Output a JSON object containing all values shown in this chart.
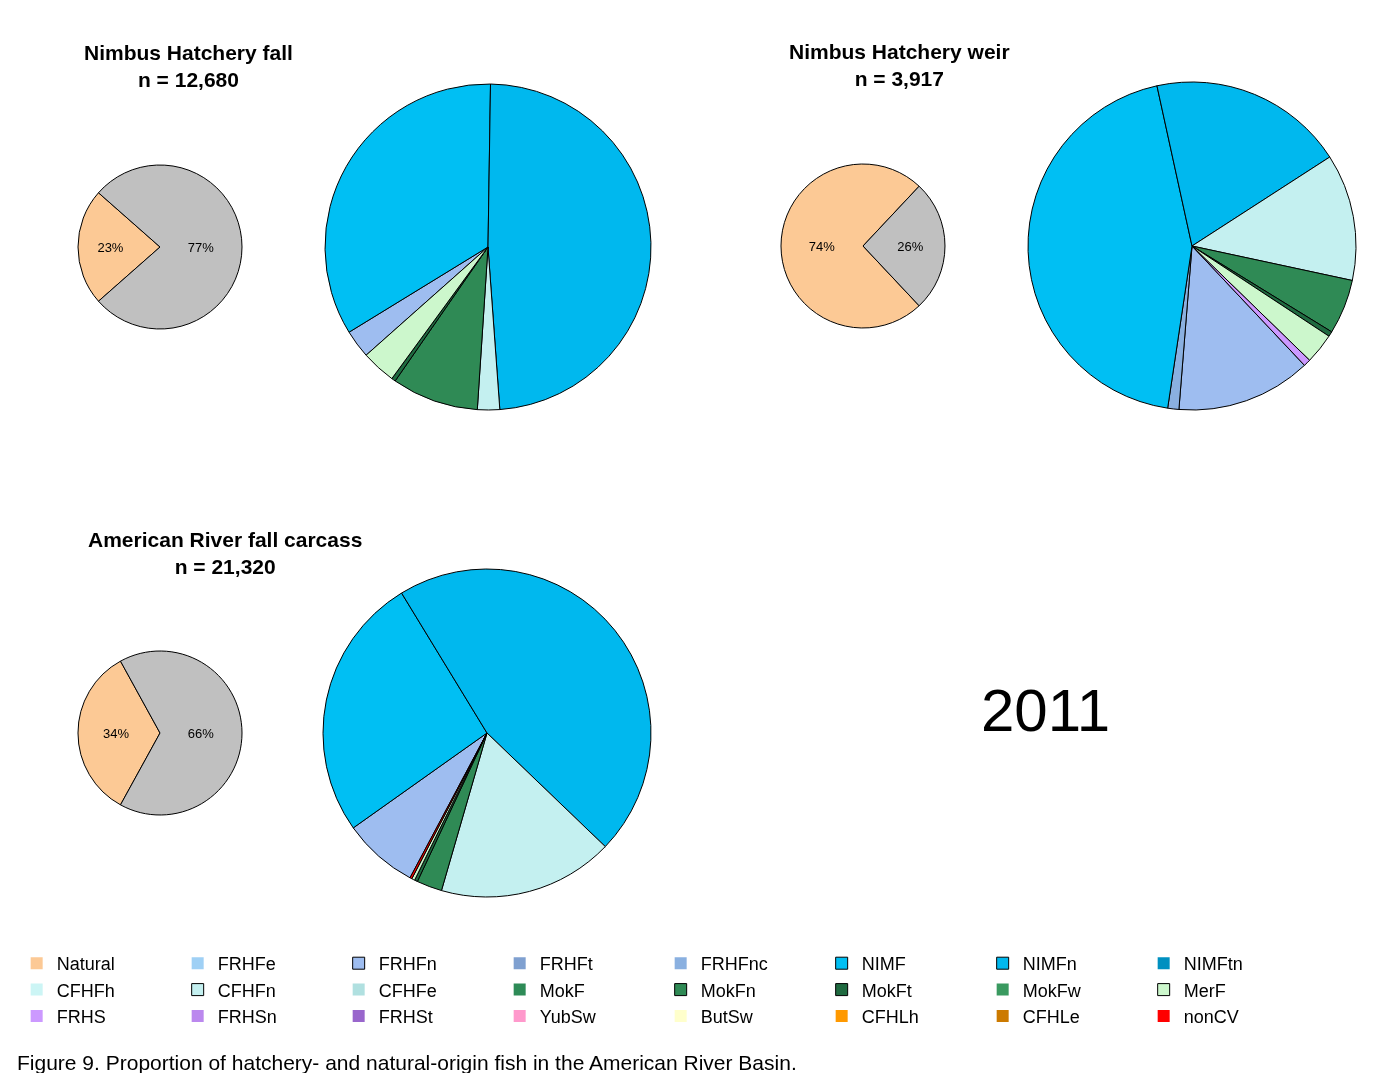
{
  "chart_data": [
    {
      "type": "pie",
      "title": "Nimbus Hatchery fall",
      "subtitle": "n = 12,680",
      "categories": [
        null,
        null
      ],
      "values": [
        23,
        77
      ],
      "colors": [
        "#fcc995",
        "#c0c0c0"
      ],
      "value_labels": [
        "23%",
        "77%"
      ]
    },
    {
      "type": "pie",
      "legend": "bottom",
      "categories": [
        "Natural",
        "FRHFe",
        "FRHFn",
        "FRHFt",
        "FRHFnc",
        "NIMF",
        "NIMFn",
        "NIMFtn",
        "CFHFh",
        "CFHFn",
        "CFHFe",
        "MokF",
        "MokFn",
        "MokFt",
        "MokFw",
        "MerF",
        "FRHS",
        "FRHSn",
        "FRHSt",
        "YubSw",
        "ButSw",
        "CFHLh",
        "CFHLe",
        "nonCV"
      ],
      "values": [
        0,
        0,
        2.8,
        0,
        0,
        34.0,
        48.6,
        0,
        0,
        2.2,
        0,
        0,
        8.6,
        0.4,
        0,
        3.4,
        0,
        0,
        0,
        0,
        0,
        0,
        0,
        0
      ],
      "colors": [
        "#fcc995",
        "#9fd0f5",
        "#9ebdf0",
        "#7fa0d0",
        "#8ab0e0",
        "#00bff3",
        "#00b8ee",
        "#0090c0",
        "#ccf5f5",
        "#c4f0f0",
        "#b0e0e0",
        "#2e8b57",
        "#2f8a55",
        "#1f6a40",
        "#3a9a60",
        "#ccf7cc",
        "#cc99ff",
        "#bb88ee",
        "#9966cc",
        "#ff99cc",
        "#ffffcc",
        "#ff9900",
        "#cc7a00",
        "#ff0000"
      ]
    },
    {
      "type": "pie",
      "title": "Nimbus Hatchery weir",
      "subtitle": "n = 3,917",
      "categories": [
        null,
        null
      ],
      "values": [
        74,
        26
      ],
      "colors": [
        "#fcc995",
        "#c0c0c0"
      ],
      "value_labels": [
        "74%",
        "26%"
      ]
    },
    {
      "type": "pie",
      "categories": [
        null,
        null,
        null,
        null,
        null,
        null,
        null,
        null,
        null
      ],
      "values": [
        13.3,
        1.1,
        44.2,
        19.3,
        12.5,
        5.4,
        0.5,
        3.0,
        0.7
      ],
      "colors": [
        "#9ebdf0",
        "#8ab0e0",
        "#00bff3",
        "#00b8ee",
        "#c4f0f0",
        "#2f8a55",
        "#1f6a40",
        "#ccf7cc",
        "#cc99ff"
      ]
    },
    {
      "type": "pie",
      "title": "American River fall carcass",
      "subtitle": "n = 21,320",
      "categories": [
        null,
        null
      ],
      "values": [
        34,
        66
      ],
      "colors": [
        "#fcc995",
        "#c0c0c0"
      ],
      "value_labels": [
        "34%",
        "66%"
      ]
    },
    {
      "type": "pie",
      "categories": [
        null,
        null,
        null,
        null,
        null,
        null,
        null,
        null
      ],
      "values": [
        7.4,
        26.1,
        45.9,
        17.3,
        2.5,
        0.3,
        0.3,
        0.2
      ],
      "colors": [
        "#9ebdf0",
        "#00bff3",
        "#00b8ee",
        "#c4f0f0",
        "#2f8a55",
        "#1f6a40",
        "#ccf7cc",
        "#ff0000"
      ]
    },
    {
      "type": "other",
      "annotations": [
        "2011",
        "Figure 9. Proportion of hatchery- and natural-origin fish in the American River Basin."
      ]
    }
  ]
}
